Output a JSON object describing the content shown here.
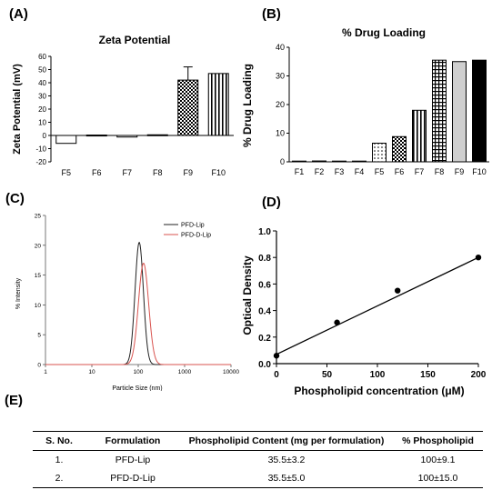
{
  "panels": {
    "a": "(A)",
    "b": "(B)",
    "c": "(C)",
    "d": "(D)",
    "e": "(E)"
  },
  "chart_data": [
    {
      "id": "A",
      "type": "bar",
      "title": "Zeta Potential",
      "ylabel": "Zeta Potential (mV)",
      "xlabel": "",
      "categories": [
        "F5",
        "F6",
        "F7",
        "F8",
        "F9",
        "F10"
      ],
      "values": [
        -6,
        0.3,
        -1.2,
        0.5,
        42,
        47
      ],
      "errors": [
        0,
        0,
        0,
        0,
        10,
        0
      ],
      "patterns": [
        "white",
        "white",
        "white",
        "white",
        "checker",
        "vstripe"
      ],
      "ylim": [
        -20,
        60
      ],
      "yticks": [
        -20,
        -10,
        0,
        10,
        20,
        30,
        40,
        50,
        60
      ]
    },
    {
      "id": "B",
      "type": "bar",
      "title": "% Drug Loading",
      "ylabel": "% Drug Loading",
      "xlabel": "",
      "categories": [
        "F1",
        "F2",
        "F3",
        "F4",
        "F5",
        "F6",
        "F7",
        "F8",
        "F9",
        "F10"
      ],
      "values": [
        0.2,
        0.3,
        0,
        0,
        6.5,
        8.8,
        18,
        35.5,
        35,
        35.5
      ],
      "patterns": [
        "white",
        "white",
        "white",
        "white",
        "dots",
        "checker",
        "vstripe",
        "grid",
        "gray",
        "black"
      ],
      "ylim": [
        0,
        40
      ],
      "yticks": [
        0,
        10,
        20,
        30,
        40
      ]
    },
    {
      "id": "C",
      "type": "line",
      "title": "",
      "xlabel": "Particle Size (nm)",
      "ylabel": "% Intensity",
      "xscale": "log",
      "xlim": [
        1,
        10000
      ],
      "ylim": [
        0,
        25
      ],
      "xticks": [
        1,
        10,
        100,
        1000,
        10000
      ],
      "yticks": [
        0,
        5,
        10,
        15,
        20,
        25
      ],
      "legend_position": "top-right",
      "series": [
        {
          "name": "PFD-Lip",
          "color": "#222222",
          "peak_x": 105,
          "peak_y": 20.5,
          "log_sd": 0.09
        },
        {
          "name": "PFD-D-Lip",
          "color": "#d9534f",
          "peak_x": 130,
          "peak_y": 17,
          "log_sd": 0.11
        }
      ]
    },
    {
      "id": "D",
      "type": "scatter",
      "title": "",
      "xlabel": "Phospholipid concentration (μM)",
      "ylabel": "Optical Density",
      "xlim": [
        0,
        200
      ],
      "ylim": [
        0,
        1.0
      ],
      "xticks": [
        0,
        50,
        100,
        150,
        200
      ],
      "yticks": [
        0.0,
        0.2,
        0.4,
        0.6,
        0.8,
        1.0
      ],
      "points": {
        "x": [
          0,
          60,
          120,
          200
        ],
        "y": [
          0.06,
          0.31,
          0.55,
          0.8
        ]
      },
      "fit": {
        "x": [
          0,
          200
        ],
        "y": [
          0.07,
          0.8
        ]
      }
    }
  ],
  "table": {
    "headers": [
      "S. No.",
      "Formulation",
      "Phospholipid Content (mg per formulation)",
      "% Phospholipid"
    ],
    "rows": [
      [
        "1.",
        "PFD-Lip",
        "35.5±3.2",
        "100±9.1"
      ],
      [
        "2.",
        "PFD-D-Lip",
        "35.5±5.0",
        "100±15.0"
      ]
    ]
  }
}
